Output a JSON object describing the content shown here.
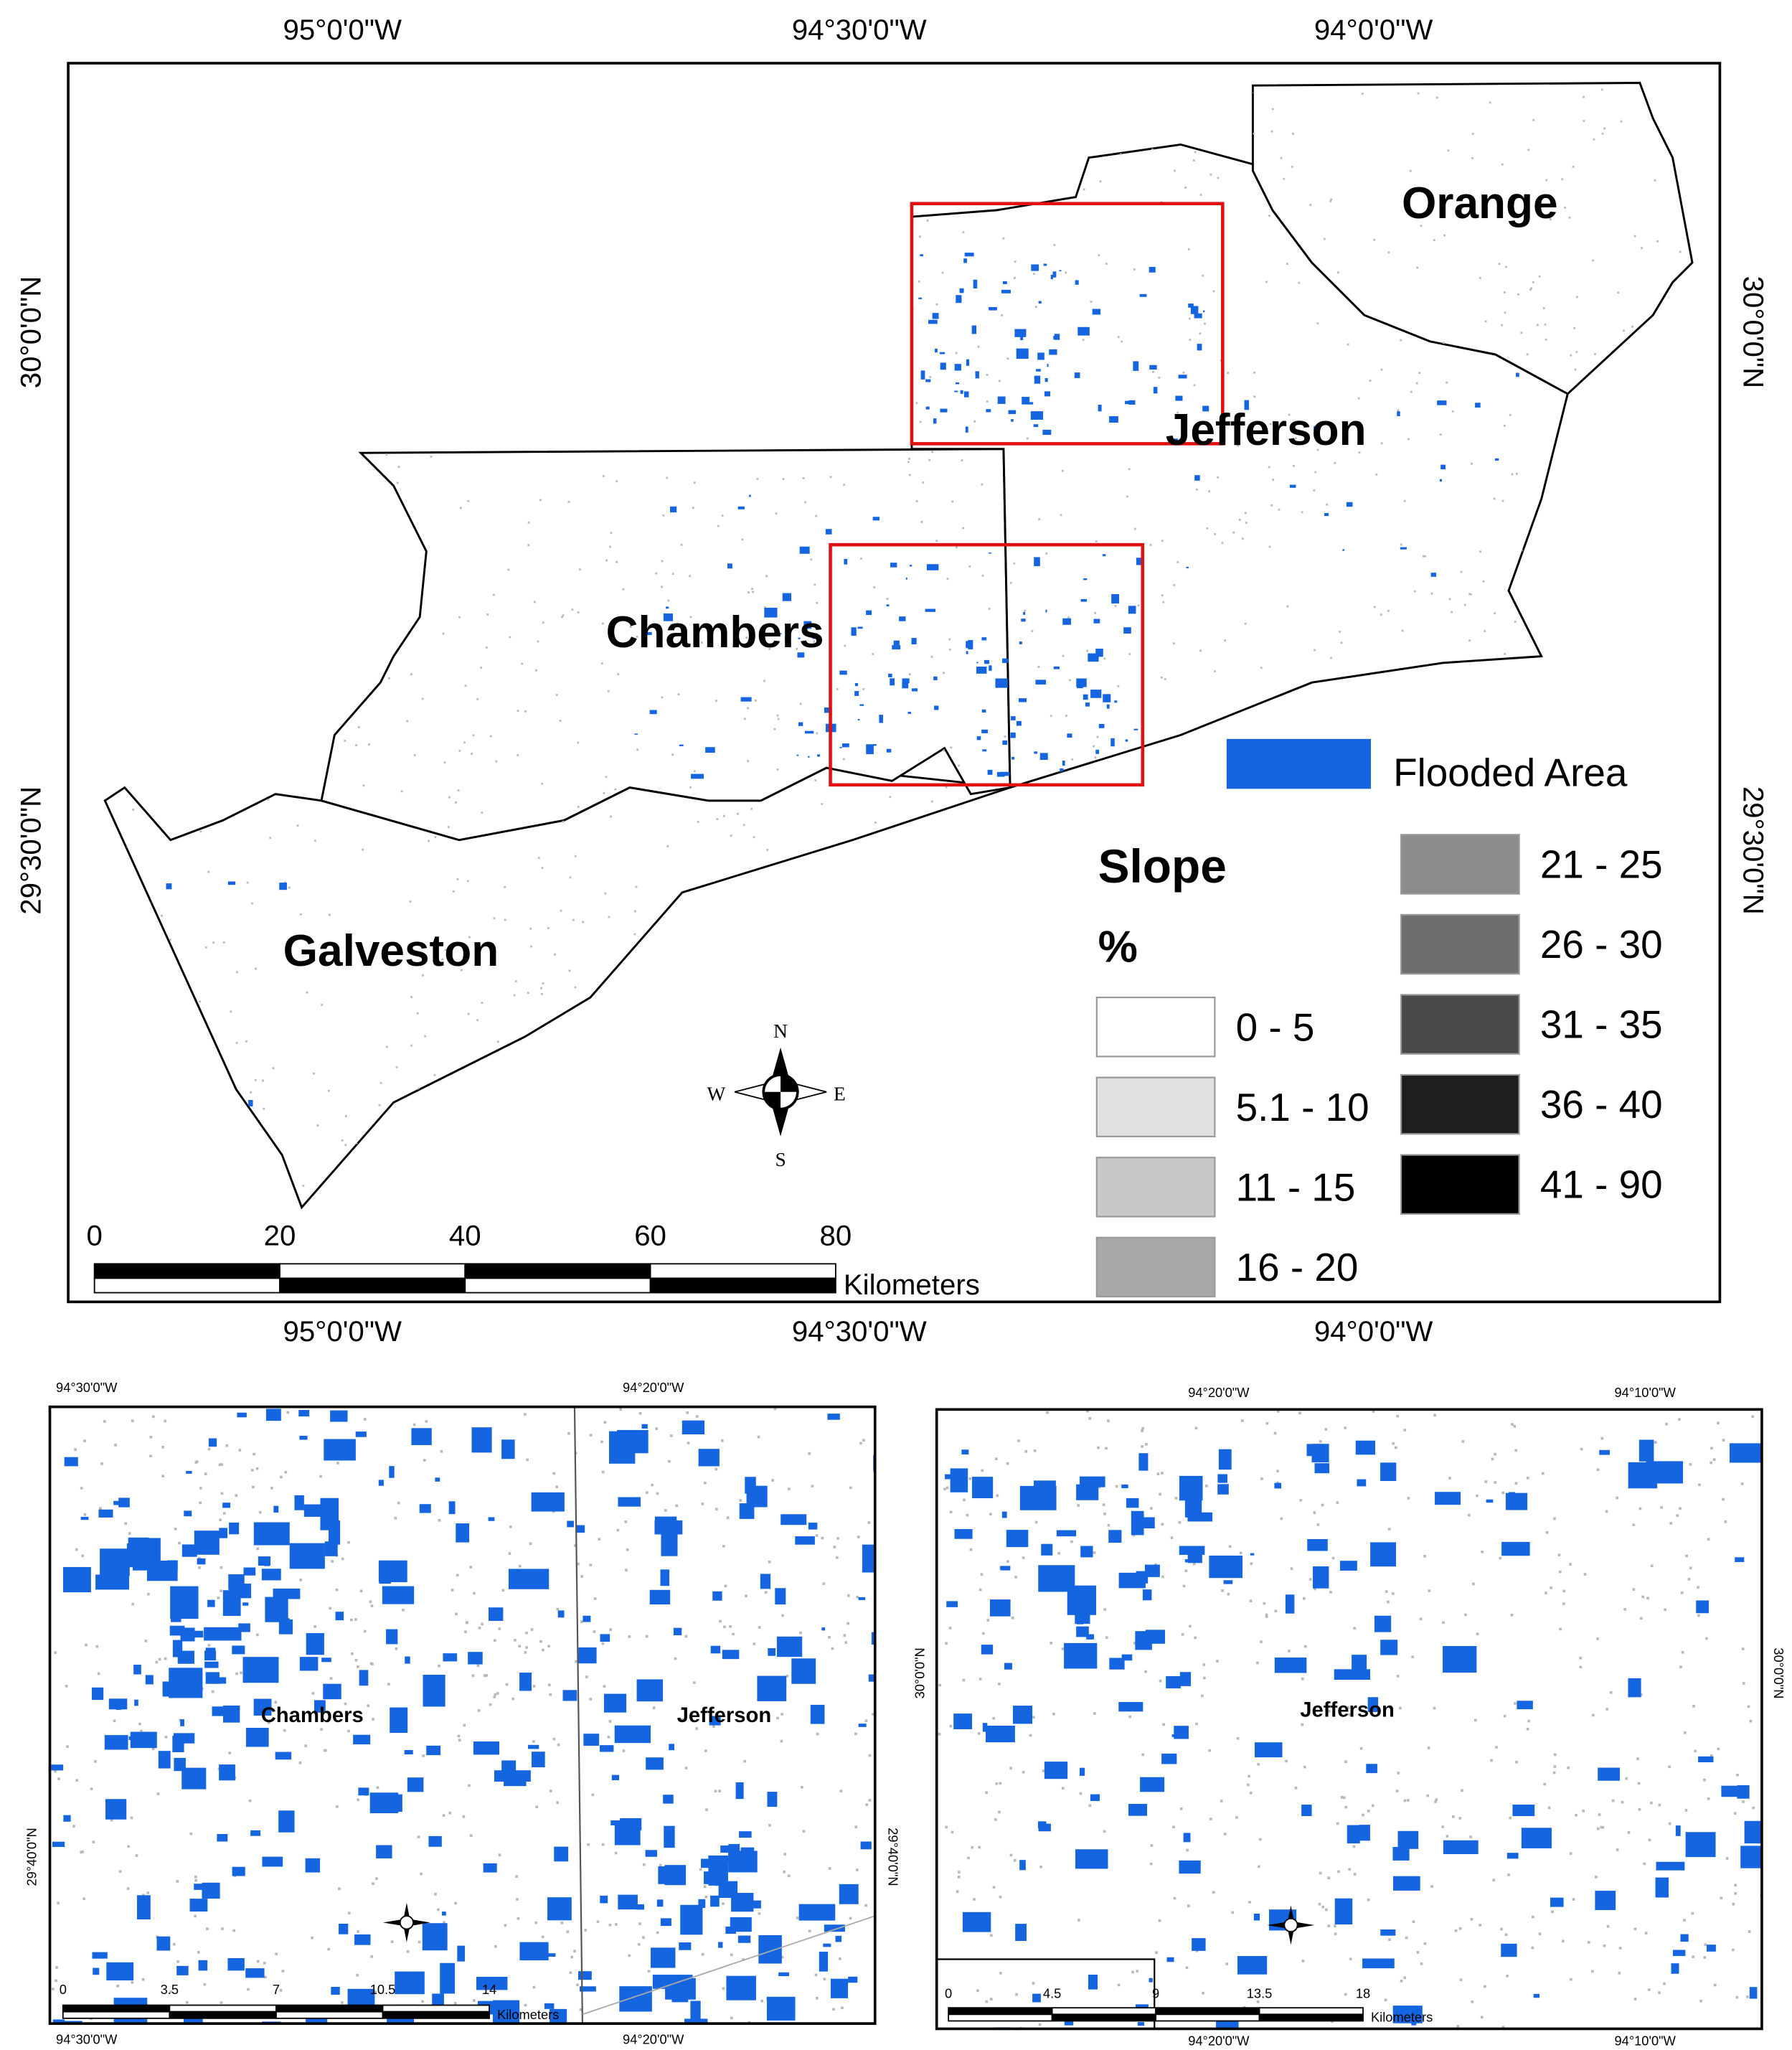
{
  "main_map": {
    "lon_labels": [
      "95°0'0\"W",
      "94°30'0\"W",
      "94°0'0\"W"
    ],
    "lat_labels": [
      "30°0'0\"N",
      "29°30'0\"N"
    ],
    "counties": [
      "Orange",
      "Jefferson",
      "Chambers",
      "Galveston"
    ],
    "legend": {
      "flooded": "Flooded Area",
      "flood_color": "#1565e0",
      "slope_title": "Slope",
      "slope_unit": "%",
      "classes": [
        {
          "label": "0 - 5",
          "color": "#ffffff"
        },
        {
          "label": "5.1 - 10",
          "color": "#e0e0e0"
        },
        {
          "label": "11 - 15",
          "color": "#c8c8c8"
        },
        {
          "label": "16 - 20",
          "color": "#a8a8a8"
        },
        {
          "label": "21 - 25",
          "color": "#8c8c8c"
        },
        {
          "label": "26 - 30",
          "color": "#6e6e6e"
        },
        {
          "label": "31 - 35",
          "color": "#4a4a4a"
        },
        {
          "label": "36 - 40",
          "color": "#1e1e1e"
        },
        {
          "label": "41 - 90",
          "color": "#000000"
        }
      ]
    },
    "scale": {
      "ticks": [
        "0",
        "20",
        "40",
        "60",
        "80"
      ],
      "unit": "Kilometers"
    },
    "compass": {
      "n": "N",
      "s": "S",
      "w": "W",
      "e": "E"
    }
  },
  "inset_left": {
    "lon_labels": [
      "94°30'0\"W",
      "94°20'0\"W"
    ],
    "lat_label": "29°40'0\"N",
    "labels": [
      "Chambers",
      "Jefferson"
    ],
    "scale_ticks": [
      "0",
      "3.5",
      "7",
      "10.5",
      "14"
    ],
    "scale_unit": "Kilometers"
  },
  "inset_right": {
    "lon_labels": [
      "94°20'0\"W",
      "94°10'0\"W"
    ],
    "lat_label": "30°0'0\"N",
    "labels": [
      "Jefferson"
    ],
    "scale_ticks": [
      "0",
      "4.5",
      "9",
      "13.5",
      "18"
    ],
    "scale_unit": "Kilometers"
  }
}
